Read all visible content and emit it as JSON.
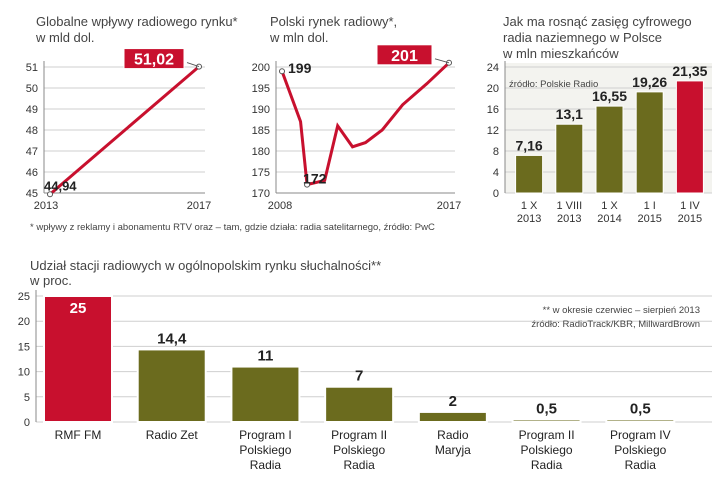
{
  "colors": {
    "red": "#c8102e",
    "olive": "#6b6b1e",
    "grid": "#cfcfcf",
    "bg_panel": "#f3f3ef"
  },
  "footnote": "* wpływy z reklamy i abonamentu RTV oraz – tam, gdzie działa: radia satelitarnego, źródło: PwC",
  "chart_data": [
    {
      "type": "line",
      "title": "Globalne wpływy radiowego rynku*",
      "title2": "w mld dol.",
      "x": [
        2013,
        2017
      ],
      "series": [
        {
          "name": "wpływy",
          "values": [
            44.94,
            51.02
          ]
        }
      ],
      "xticks": [
        "2013",
        "2017"
      ],
      "yticks": [
        45,
        46,
        47,
        48,
        49,
        50,
        51
      ],
      "ylim": [
        45,
        51
      ],
      "labels": {
        "start": "44,94",
        "end": "51,02"
      }
    },
    {
      "type": "line",
      "title": "Polski rynek radiowy*,",
      "title2": "w mln dol.",
      "x": [
        2008,
        2009,
        2009.35,
        2010.3,
        2011,
        2011.8,
        2012.5,
        2013.4,
        2014.5,
        2015.8,
        2017
      ],
      "series": [
        {
          "name": "rynek",
          "values": [
            199,
            187,
            172,
            173,
            186,
            181,
            182,
            185,
            191,
            196,
            201
          ]
        }
      ],
      "xticks": [
        "2008",
        "2017"
      ],
      "yticks": [
        170,
        175,
        180,
        185,
        190,
        195,
        200
      ],
      "ylim": [
        170,
        200
      ],
      "labels": {
        "start": "199",
        "min": "172",
        "end": "201"
      }
    },
    {
      "type": "bar",
      "title": "Jak ma rosnąć zasięg cyfrowego",
      "title2": "radia naziemnego w Polsce",
      "title3": "w mln mieszkańców",
      "source": "źródło: Polskie Radio",
      "categories": [
        [
          "1 X",
          "2013"
        ],
        [
          "1 VIII",
          "2013"
        ],
        [
          "1 X",
          "2014"
        ],
        [
          "1 I",
          "2015"
        ],
        [
          "1 IV",
          "2015"
        ]
      ],
      "values": [
        7.16,
        13.1,
        16.55,
        19.26,
        21.35
      ],
      "value_labels": [
        "7,16",
        "13,1",
        "16,55",
        "19,26",
        "21,35"
      ],
      "highlight": [
        false,
        false,
        false,
        false,
        true
      ],
      "yticks": [
        0,
        4,
        8,
        12,
        16,
        20,
        24
      ],
      "ylim": [
        0,
        24
      ]
    },
    {
      "type": "bar",
      "title": "Udział stacji radiowych w ogólnopolskim rynku słuchalności**",
      "title2": "w proc.",
      "note1": "** w okresie czerwiec – sierpień 2013",
      "note2": "źródło: RadioTrack/KBR, MillwardBrown",
      "categories": [
        [
          "RMF FM"
        ],
        [
          "Radio Zet"
        ],
        [
          "Program I",
          "Polskiego",
          "Radia"
        ],
        [
          "Program II",
          "Polskiego",
          "Radia"
        ],
        [
          "Radio",
          "Maryja"
        ],
        [
          "Program II",
          "Polskiego",
          "Radia"
        ],
        [
          "Program IV",
          "Polskiego",
          "Radia"
        ]
      ],
      "values": [
        25,
        14.4,
        11,
        7,
        2,
        0.5,
        0.5
      ],
      "value_labels": [
        "25",
        "14,4",
        "11",
        "7",
        "2",
        "0,5",
        "0,5"
      ],
      "highlight": [
        true,
        false,
        false,
        false,
        false,
        false,
        false
      ],
      "yticks": [
        0,
        5,
        10,
        15,
        20,
        25
      ],
      "ylim": [
        0,
        25
      ]
    }
  ]
}
